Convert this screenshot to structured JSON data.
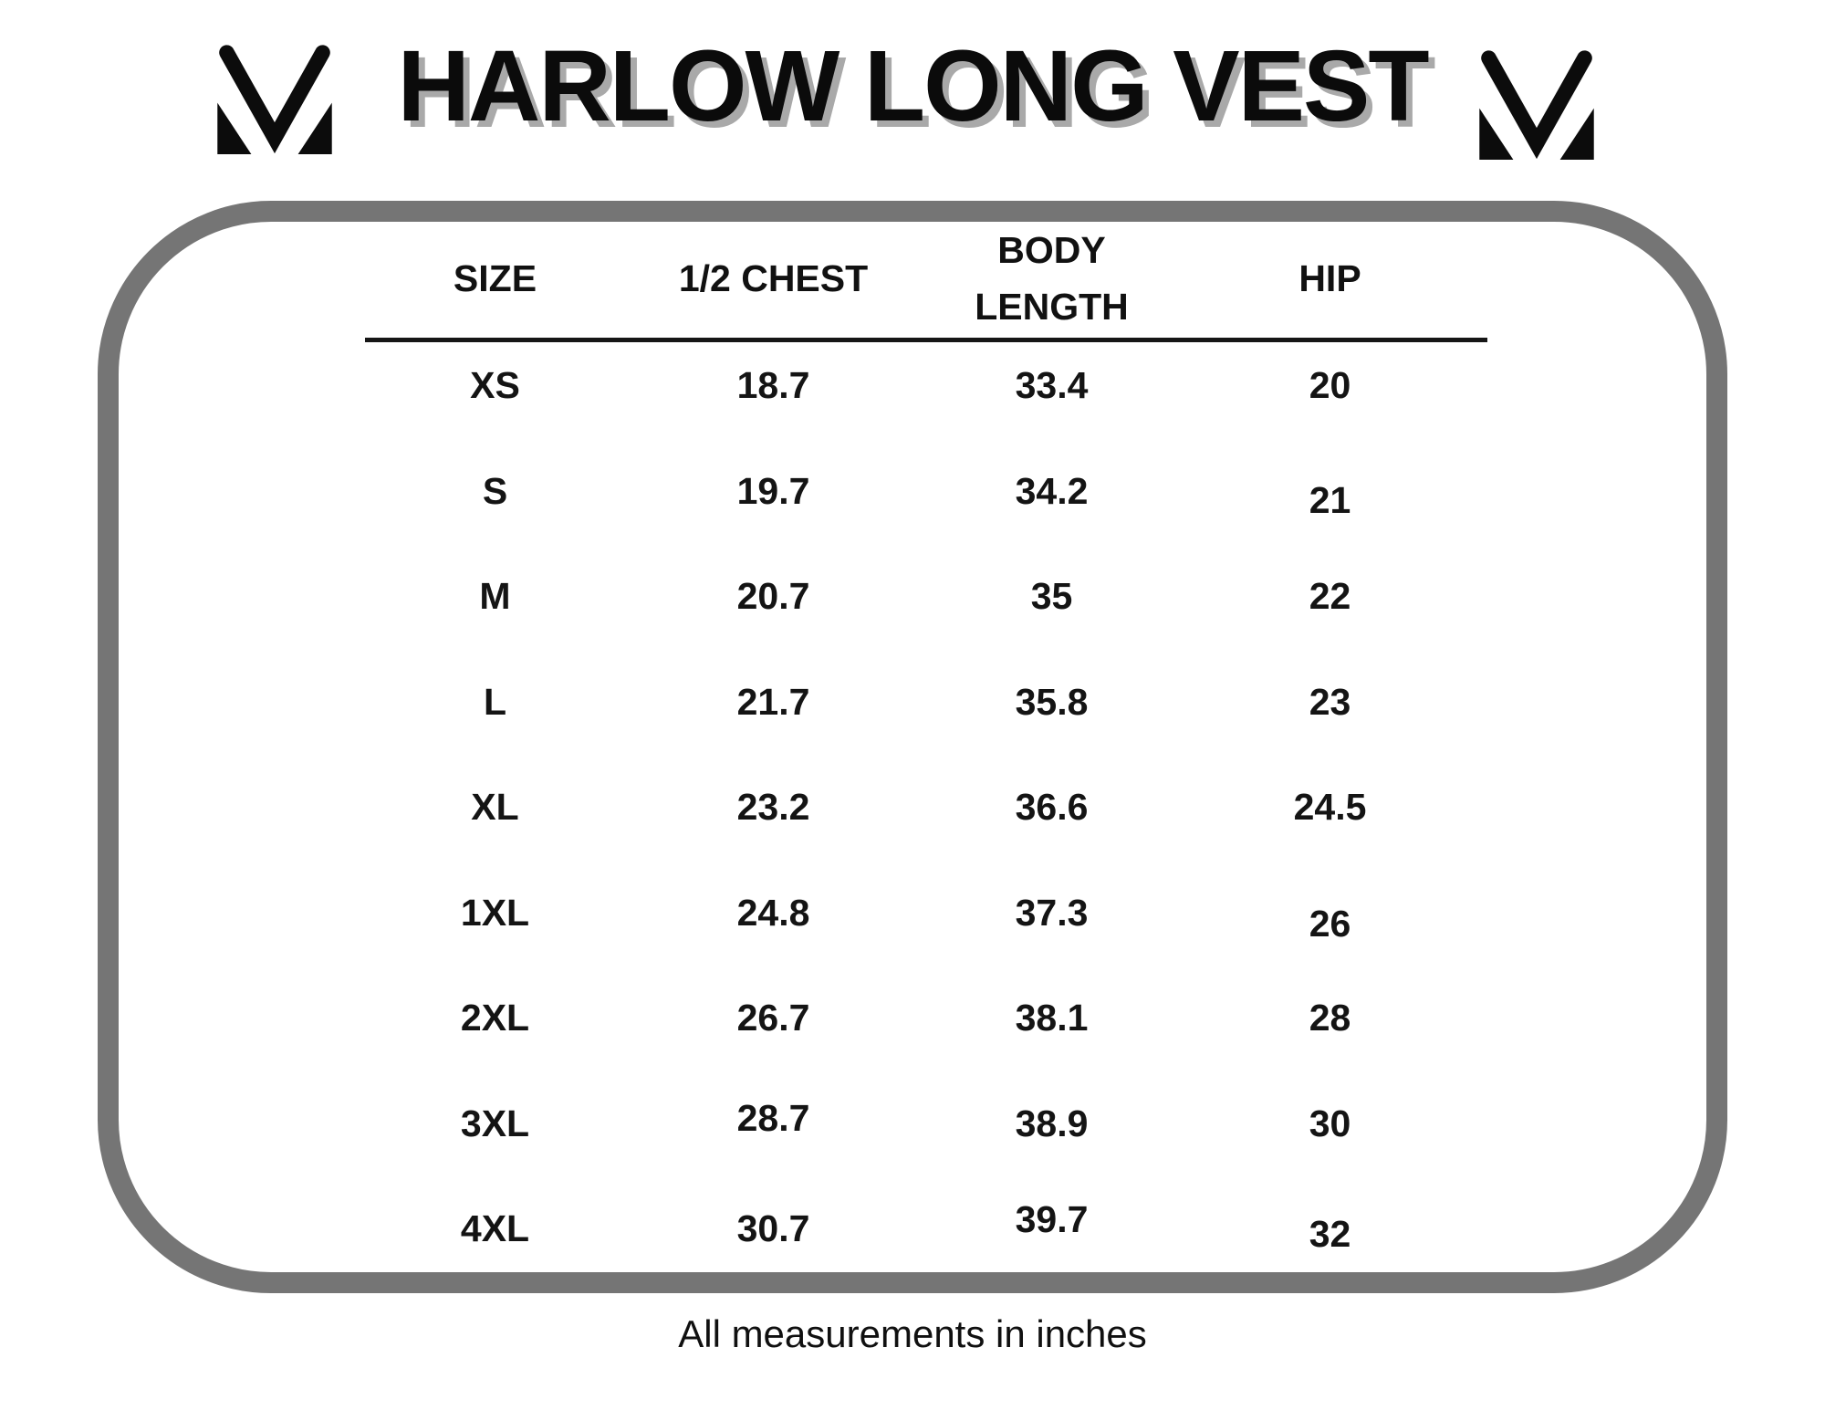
{
  "chart_data": {
    "type": "table",
    "title": "HARLOW LONG VEST",
    "columns": [
      "SIZE",
      "1/2 CHEST",
      "BODY LENGTH",
      "HIP"
    ],
    "rows": [
      [
        "XS",
        "18.7",
        "33.4",
        "20"
      ],
      [
        "S",
        "19.7",
        "34.2",
        "21"
      ],
      [
        "M",
        "20.7",
        "35",
        "22"
      ],
      [
        "L",
        "21.7",
        "35.8",
        "23"
      ],
      [
        "XL",
        "23.2",
        "36.6",
        "24.5"
      ],
      [
        "1XL",
        "24.8",
        "37.3",
        "26"
      ],
      [
        "2XL",
        "26.7",
        "38.1",
        "28"
      ],
      [
        "3XL",
        "28.7",
        "38.9",
        "30"
      ],
      [
        "4XL",
        "30.7",
        "39.7",
        "32"
      ]
    ],
    "note": "All measurements in inches",
    "units": "inches",
    "legend_position": "none",
    "grid": false
  },
  "logo": {
    "name": "mv-monogram",
    "description": "stylized letter M monogram",
    "color": "#0c0c0c"
  },
  "colors": {
    "background": "#ffffff",
    "ink": "#0b0b0b",
    "title_shadow": "#a9a9a9",
    "border_gray": "#757575"
  }
}
